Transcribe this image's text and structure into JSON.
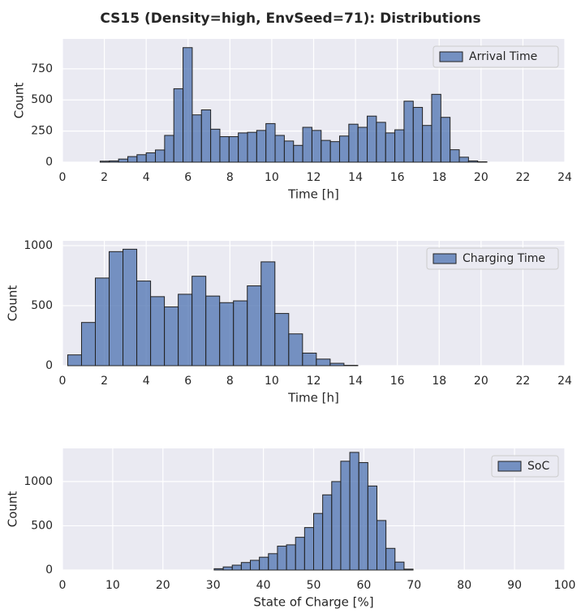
{
  "title": "CS15 (Density=high, EnvSeed=71): Distributions",
  "chart_data": [
    {
      "type": "histogram",
      "xlabel": "Time [h]",
      "ylabel": "Count",
      "grid": true,
      "legend": "upper right",
      "bins": [
        1.8,
        2.24,
        2.68,
        3.12,
        3.56,
        4.0,
        4.44,
        4.88,
        5.32,
        5.76,
        6.2,
        6.64,
        7.08,
        7.52,
        7.96,
        8.4,
        8.84,
        9.28,
        9.72,
        10.16,
        10.6,
        11.04,
        11.48,
        11.92,
        12.36,
        12.8,
        13.24,
        13.68,
        14.12,
        14.56,
        15.0,
        15.44,
        15.88,
        16.32,
        16.76,
        17.2,
        17.64,
        18.08,
        18.52,
        18.96,
        19.4,
        19.84,
        20.28
      ],
      "series": [
        {
          "name": "Arrival Time",
          "color": "#4c72b0",
          "values": [
            8,
            10,
            25,
            45,
            60,
            75,
            98,
            215,
            590,
            920,
            380,
            420,
            265,
            205,
            205,
            235,
            240,
            255,
            310,
            215,
            170,
            135,
            280,
            255,
            175,
            165,
            210,
            305,
            280,
            370,
            320,
            235,
            260,
            490,
            440,
            295,
            545,
            360,
            100,
            40,
            10,
            3
          ]
        }
      ],
      "xlim": [
        0,
        24
      ],
      "xticks": [
        0,
        2,
        4,
        6,
        8,
        10,
        12,
        14,
        16,
        18,
        20,
        22,
        24
      ],
      "ylim": [
        0,
        990
      ],
      "yticks": [
        0,
        250,
        500,
        750
      ]
    },
    {
      "type": "histogram",
      "xlabel": "Time [h]",
      "ylabel": "Count",
      "grid": true,
      "legend": "upper right",
      "bins": [
        0.25,
        0.91,
        1.57,
        2.23,
        2.89,
        3.55,
        4.21,
        4.87,
        5.53,
        6.19,
        6.85,
        7.51,
        8.17,
        8.83,
        9.49,
        10.15,
        10.81,
        11.47,
        12.13,
        12.79,
        13.45,
        14.11
      ],
      "series": [
        {
          "name": "Charging Time",
          "color": "#4c72b0",
          "values": [
            90,
            360,
            730,
            950,
            970,
            705,
            575,
            490,
            595,
            745,
            580,
            525,
            540,
            665,
            865,
            435,
            265,
            105,
            55,
            20,
            3
          ]
        }
      ],
      "xlim": [
        0,
        24
      ],
      "xticks": [
        0,
        2,
        4,
        6,
        8,
        10,
        12,
        14,
        16,
        18,
        20,
        22,
        24
      ],
      "ylim": [
        0,
        1040
      ],
      "yticks": [
        0,
        500,
        1000
      ]
    },
    {
      "type": "histogram",
      "xlabel": "State of Charge [%]",
      "ylabel": "Count",
      "grid": true,
      "legend": "upper right",
      "bins": [
        30.2,
        32.0,
        33.8,
        35.6,
        37.4,
        39.2,
        41.0,
        42.8,
        44.6,
        46.4,
        48.2,
        50.0,
        51.8,
        53.6,
        55.4,
        57.2,
        59.0,
        60.8,
        62.6,
        64.4,
        66.2,
        68.0,
        69.8
      ],
      "series": [
        {
          "name": "SoC",
          "color": "#4c72b0",
          "values": [
            15,
            35,
            55,
            85,
            110,
            145,
            185,
            270,
            285,
            370,
            480,
            640,
            850,
            1000,
            1230,
            1330,
            1215,
            950,
            560,
            245,
            90,
            10
          ]
        }
      ],
      "xlim": [
        0,
        100
      ],
      "xticks": [
        0,
        10,
        20,
        30,
        40,
        50,
        60,
        70,
        80,
        90,
        100
      ],
      "ylim": [
        0,
        1375
      ],
      "yticks": [
        0,
        500,
        1000
      ]
    }
  ]
}
